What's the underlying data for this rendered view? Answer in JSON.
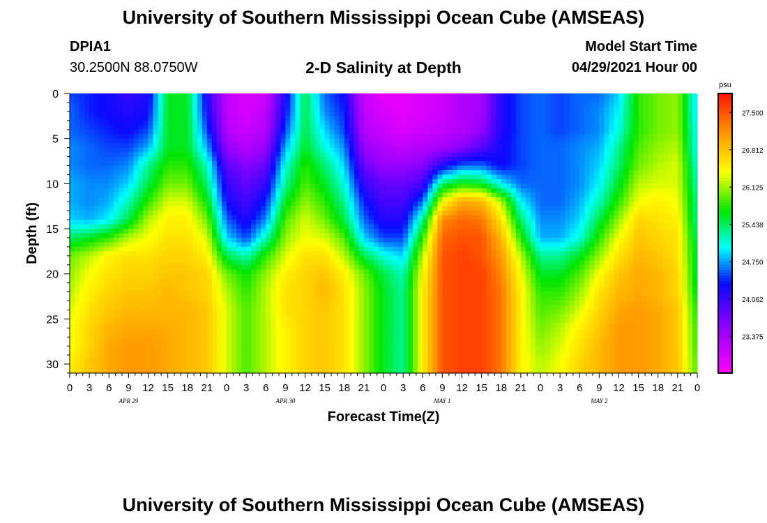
{
  "header": {
    "title": "University of Southern Mississippi Ocean Cube (AMSEAS)",
    "station_id": "DPIA1",
    "station_coords": "30.2500N  88.0750W",
    "plot_title": "2-D Salinity at Depth",
    "start_label": "Model Start Time",
    "start_value": "04/29/2021 Hour 00"
  },
  "footer": {
    "title": "University of Southern Mississippi Ocean Cube (AMSEAS)"
  },
  "chart_data": {
    "type": "heatmap",
    "title": "2-D Salinity at Depth",
    "xlabel": "Forecast Time(Z)",
    "ylabel": "Depth (ft)",
    "x_hours_range": [
      0,
      96
    ],
    "x_tick_labels": [
      "0",
      "3",
      "6",
      "9",
      "12",
      "15",
      "18",
      "21",
      "0",
      "3",
      "6",
      "9",
      "12",
      "15",
      "18",
      "21",
      "0",
      "3",
      "6",
      "9",
      "12",
      "15",
      "18",
      "21",
      "0",
      "3",
      "6",
      "9",
      "12",
      "15",
      "18",
      "21",
      "0"
    ],
    "date_labels": [
      "APR 29",
      "APR 30",
      "MAY 1",
      "MAY 2"
    ],
    "ylim": [
      0,
      31
    ],
    "y_ticks": [
      0,
      5,
      10,
      15,
      20,
      25,
      30
    ],
    "colorbar": {
      "unit": "psu",
      "min": 22.7,
      "max": 27.85,
      "tick_values": [
        27.5,
        26.812,
        26.125,
        25.438,
        24.75,
        24.062,
        23.375
      ],
      "tick_labels": [
        "27.500",
        "26.812",
        "26.125",
        "25.438",
        "24.750",
        "24.062",
        "23.375"
      ]
    },
    "depths_ft": [
      0,
      2,
      4,
      6,
      8,
      10,
      12,
      14,
      16,
      18,
      20,
      22,
      24,
      26,
      28,
      30
    ],
    "hours": [
      0,
      3,
      6,
      9,
      12,
      15,
      18,
      21,
      24,
      27,
      30,
      33,
      36,
      39,
      42,
      45,
      48,
      51,
      54,
      57,
      60,
      63,
      66,
      69,
      72,
      75,
      78,
      81,
      84,
      87,
      90,
      93,
      96
    ],
    "salinity_psu": [
      [
        24.5,
        24.4,
        24.3,
        24.1,
        24.2,
        25.6,
        25.6,
        24.2,
        23.2,
        23.0,
        23.1,
        24.2,
        25.5,
        24.6,
        24.3,
        23.1,
        22.9,
        22.9,
        23.0,
        23.1,
        23.3,
        23.4,
        24.2,
        24.5,
        24.6,
        24.5,
        24.6,
        24.6,
        24.9,
        25.8,
        26.0,
        26.1,
        24.9
      ],
      [
        24.6,
        24.4,
        24.3,
        24.2,
        24.3,
        25.6,
        25.6,
        24.3,
        23.2,
        23.0,
        23.2,
        24.3,
        25.5,
        24.7,
        24.4,
        23.2,
        23.0,
        22.9,
        23.0,
        23.1,
        23.3,
        23.4,
        24.2,
        24.5,
        24.6,
        24.5,
        24.6,
        24.7,
        25.0,
        25.8,
        26.0,
        26.1,
        24.9
      ],
      [
        24.6,
        24.5,
        24.4,
        24.3,
        24.5,
        25.6,
        25.6,
        24.5,
        23.3,
        23.1,
        23.3,
        24.5,
        25.5,
        24.9,
        24.5,
        23.3,
        23.1,
        23.0,
        23.1,
        23.2,
        23.3,
        23.5,
        24.2,
        24.5,
        24.6,
        24.5,
        24.6,
        24.7,
        25.1,
        25.8,
        26.0,
        26.1,
        25.0
      ],
      [
        24.7,
        24.6,
        24.5,
        24.5,
        24.8,
        25.6,
        25.6,
        24.8,
        23.5,
        23.3,
        23.5,
        24.8,
        25.6,
        25.1,
        24.7,
        23.5,
        23.3,
        23.2,
        23.3,
        23.4,
        23.6,
        23.9,
        24.3,
        24.5,
        24.6,
        24.6,
        24.7,
        24.8,
        25.3,
        25.9,
        26.1,
        26.2,
        25.0
      ],
      [
        24.7,
        24.6,
        24.6,
        24.7,
        25.3,
        25.8,
        25.8,
        25.2,
        23.9,
        23.6,
        23.8,
        25.1,
        25.8,
        25.4,
        24.9,
        23.8,
        23.5,
        23.5,
        23.6,
        24.2,
        24.6,
        24.6,
        24.3,
        24.5,
        24.6,
        24.6,
        24.7,
        24.9,
        25.4,
        26.0,
        26.2,
        26.3,
        25.1
      ],
      [
        24.8,
        24.7,
        24.7,
        24.9,
        25.5,
        26.0,
        26.0,
        25.4,
        24.1,
        23.8,
        24.1,
        25.3,
        25.9,
        25.6,
        25.1,
        24.1,
        23.8,
        23.8,
        24.0,
        25.4,
        25.7,
        25.6,
        25.0,
        24.6,
        24.6,
        24.6,
        24.7,
        25.0,
        25.6,
        26.2,
        26.3,
        26.3,
        25.2
      ],
      [
        24.8,
        24.7,
        24.8,
        25.2,
        25.8,
        26.3,
        26.3,
        25.7,
        24.3,
        24.0,
        24.4,
        25.6,
        26.1,
        25.8,
        25.3,
        24.4,
        24.0,
        24.0,
        24.6,
        26.4,
        27.0,
        26.9,
        26.2,
        25.0,
        24.6,
        24.6,
        24.8,
        25.2,
        25.8,
        26.4,
        26.5,
        26.4,
        25.3
      ],
      [
        24.9,
        24.8,
        25.0,
        25.5,
        26.2,
        26.5,
        26.5,
        26.0,
        24.6,
        24.2,
        24.7,
        25.9,
        26.3,
        26.0,
        25.5,
        24.6,
        24.2,
        24.2,
        25.3,
        27.2,
        27.4,
        27.3,
        26.6,
        25.4,
        24.7,
        24.7,
        24.9,
        25.5,
        26.1,
        26.7,
        26.6,
        26.5,
        25.3
      ],
      [
        25.4,
        25.6,
        25.8,
        26.2,
        26.4,
        26.6,
        26.6,
        26.3,
        24.9,
        24.5,
        25.2,
        26.1,
        26.4,
        26.3,
        25.9,
        24.9,
        24.5,
        24.5,
        25.8,
        27.4,
        27.5,
        27.5,
        26.9,
        25.8,
        24.8,
        24.8,
        25.1,
        25.8,
        26.4,
        26.8,
        26.7,
        26.6,
        25.4
      ],
      [
        26.0,
        26.2,
        26.5,
        26.6,
        26.6,
        26.7,
        26.7,
        26.5,
        25.5,
        25.2,
        25.8,
        26.3,
        26.6,
        26.6,
        26.2,
        25.5,
        25.1,
        24.9,
        26.2,
        27.5,
        27.6,
        27.5,
        27.1,
        26.2,
        25.3,
        25.3,
        25.6,
        26.1,
        26.6,
        26.9,
        26.8,
        26.6,
        25.5
      ],
      [
        26.1,
        26.4,
        26.6,
        26.7,
        26.7,
        26.8,
        26.8,
        26.7,
        26.0,
        25.7,
        26.1,
        26.5,
        26.7,
        26.8,
        26.5,
        26.0,
        25.5,
        25.2,
        26.4,
        27.5,
        27.6,
        27.6,
        27.2,
        26.4,
        25.6,
        25.6,
        25.9,
        26.4,
        26.8,
        27.0,
        26.9,
        26.7,
        25.5
      ],
      [
        26.2,
        26.5,
        26.7,
        26.8,
        26.8,
        26.9,
        26.8,
        26.7,
        26.2,
        25.8,
        26.2,
        26.6,
        26.7,
        26.9,
        26.6,
        26.1,
        25.6,
        25.3,
        26.5,
        27.5,
        27.6,
        27.6,
        27.3,
        26.5,
        25.8,
        25.8,
        26.1,
        26.6,
        26.9,
        27.0,
        26.9,
        26.7,
        25.6
      ],
      [
        26.3,
        26.6,
        26.8,
        26.9,
        26.9,
        26.9,
        26.9,
        26.8,
        26.3,
        25.9,
        26.2,
        26.6,
        26.7,
        26.8,
        26.6,
        26.1,
        25.6,
        25.3,
        26.5,
        27.5,
        27.6,
        27.6,
        27.3,
        26.5,
        25.9,
        26.0,
        26.3,
        26.7,
        27.0,
        27.1,
        27.0,
        26.8,
        25.7
      ],
      [
        26.4,
        26.7,
        26.9,
        27.0,
        27.0,
        27.0,
        26.9,
        26.8,
        26.3,
        25.9,
        26.2,
        26.5,
        26.7,
        26.8,
        26.6,
        26.1,
        25.6,
        25.3,
        26.5,
        27.5,
        27.6,
        27.6,
        27.3,
        26.5,
        26.0,
        26.2,
        26.5,
        26.8,
        27.1,
        27.1,
        27.0,
        26.8,
        25.8
      ],
      [
        26.4,
        26.7,
        27.0,
        27.1,
        27.1,
        27.0,
        26.9,
        26.8,
        26.3,
        25.9,
        26.2,
        26.5,
        26.7,
        26.8,
        26.6,
        26.1,
        25.6,
        25.3,
        26.5,
        27.5,
        27.6,
        27.6,
        27.3,
        26.5,
        26.1,
        26.3,
        26.6,
        26.9,
        27.1,
        27.1,
        27.0,
        26.8,
        25.8
      ],
      [
        26.5,
        26.8,
        27.0,
        27.1,
        27.1,
        27.0,
        26.9,
        26.8,
        26.3,
        25.9,
        26.2,
        26.5,
        26.7,
        26.8,
        26.6,
        26.1,
        25.6,
        25.3,
        26.5,
        27.5,
        27.6,
        27.6,
        27.3,
        26.5,
        26.2,
        26.4,
        26.7,
        26.9,
        27.1,
        27.1,
        27.0,
        26.8,
        25.9
      ]
    ]
  }
}
